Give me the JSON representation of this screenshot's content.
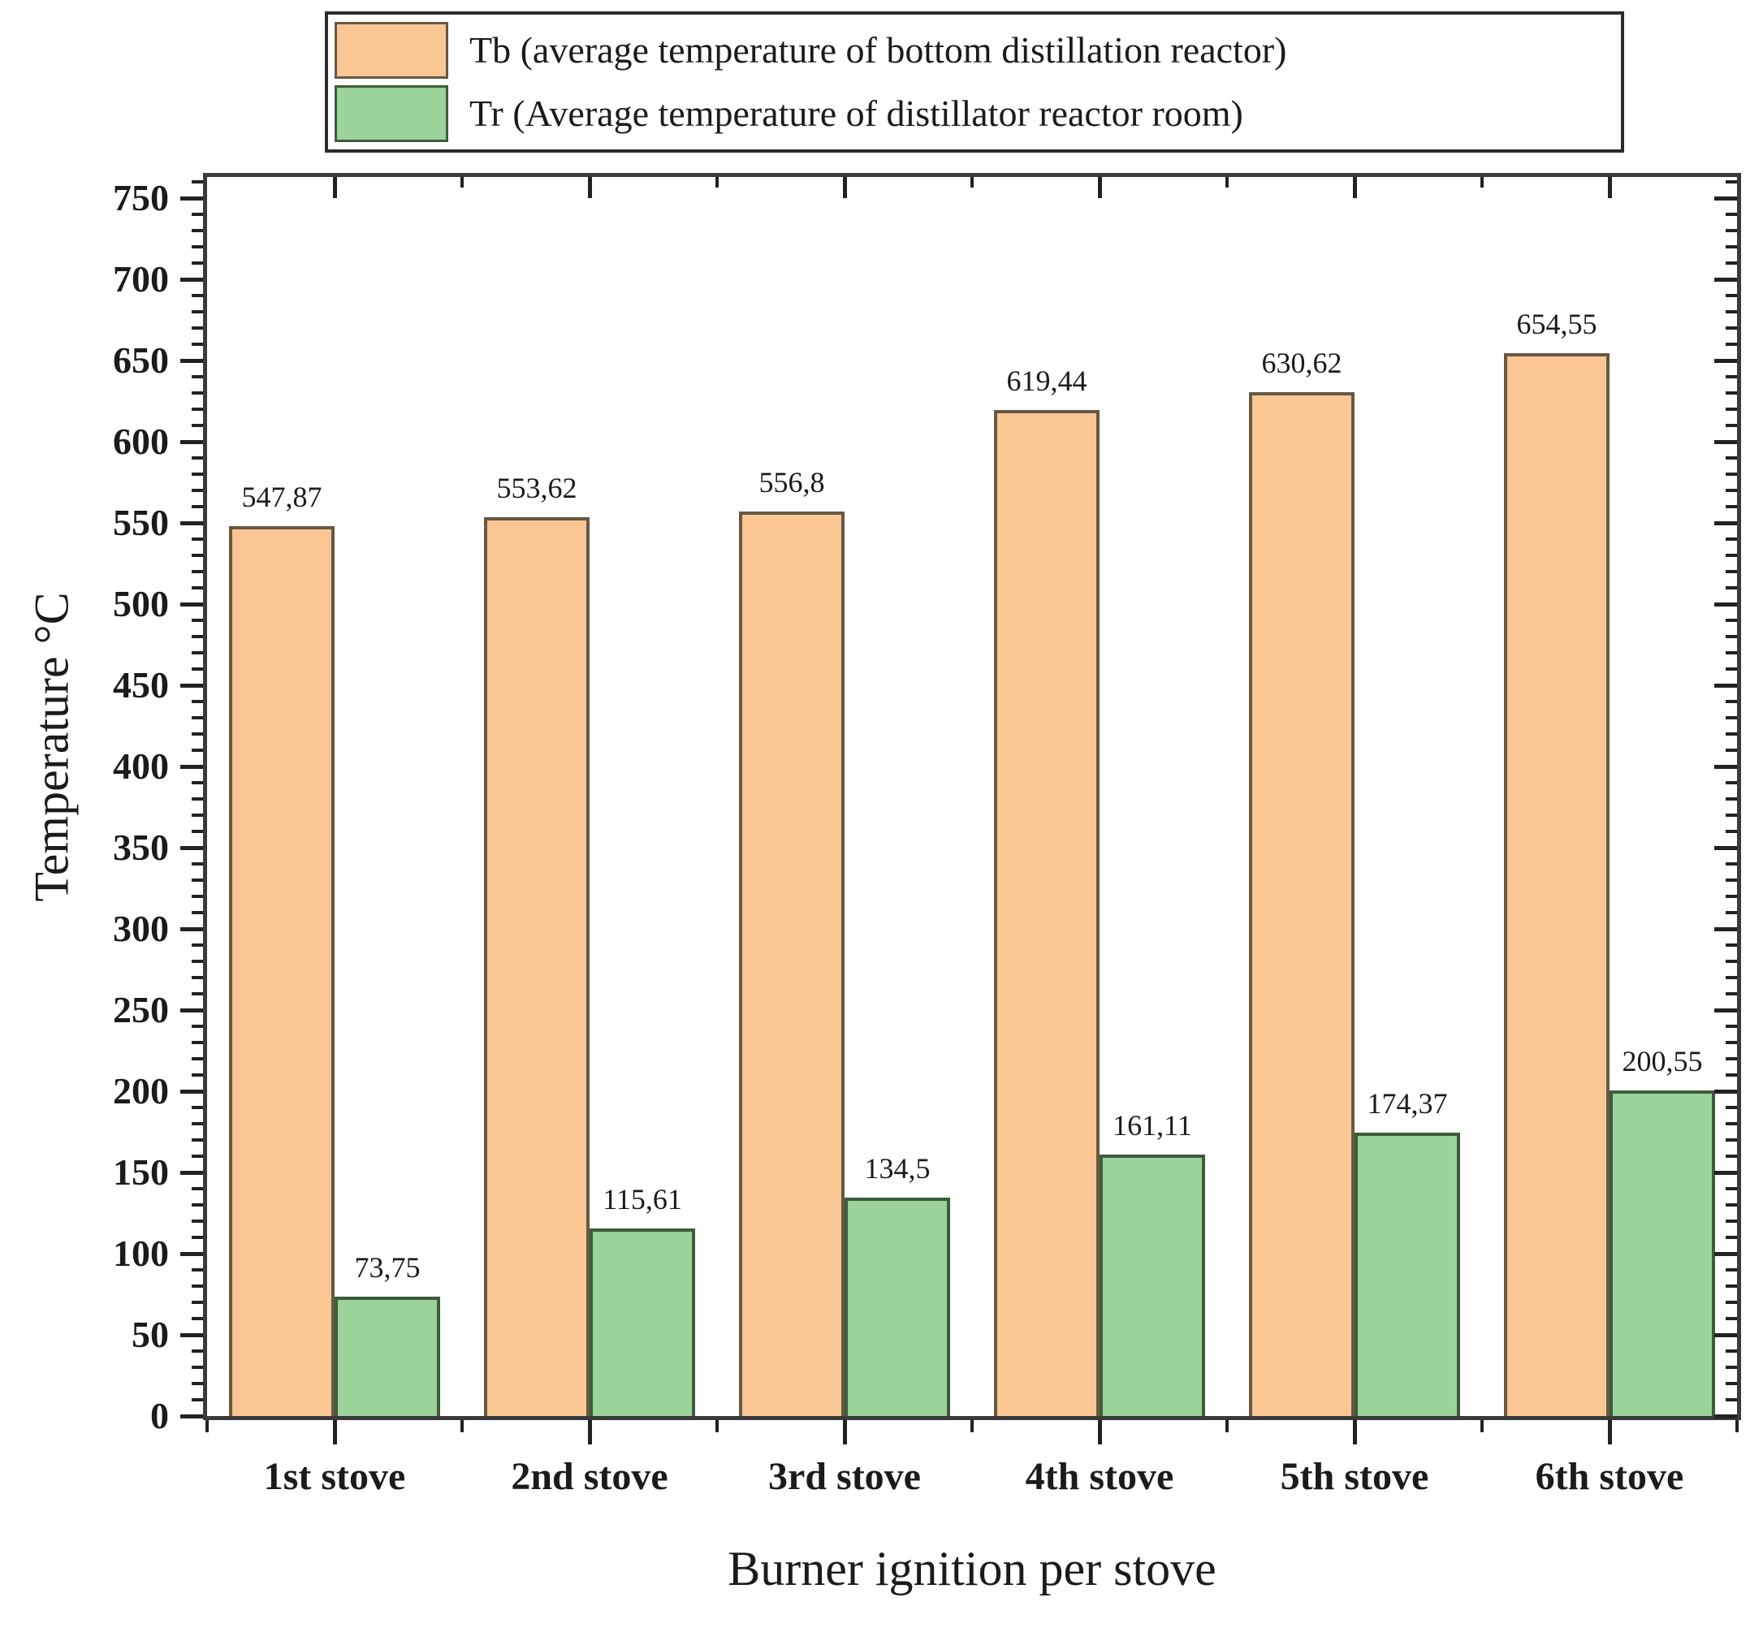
{
  "chart_data": {
    "type": "bar",
    "title": "",
    "xlabel": "Burner ignition per stove",
    "ylabel": "Temperature °C",
    "categories": [
      "1st stove",
      "2nd stove",
      "3rd stove",
      "4th stove",
      "5th stove",
      "6th stove"
    ],
    "series": [
      {
        "name": "Tb (average temperature of bottom distillation reactor)",
        "short_name": "Tb",
        "color": "#FAC693",
        "border_color": "#665843",
        "values": [
          547.87,
          553.62,
          556.8,
          619.44,
          630.62,
          654.55
        ],
        "value_labels": [
          "547,87",
          "553,62",
          "556,8",
          "619,44",
          "630,62",
          "654,55"
        ]
      },
      {
        "name": "Tr (Average temperature of distillator reactor room)",
        "short_name": "Tr",
        "color": "#9BD39B",
        "border_color": "#3E5C3B",
        "values": [
          73.75,
          115.61,
          134.5,
          161.11,
          174.37,
          200.55
        ],
        "value_labels": [
          "73,75",
          "115,61",
          "134,5",
          "161,11",
          "174,37",
          "200,55"
        ]
      }
    ],
    "ylim": [
      0,
      763
    ],
    "y_major_tick_step": 50,
    "y_minor_tick_step": 10,
    "y_major_tick_labels": [
      "0",
      "50",
      "100",
      "150",
      "200",
      "250",
      "300",
      "350",
      "400",
      "450",
      "500",
      "550",
      "600",
      "650",
      "700",
      "750"
    ],
    "grid": false,
    "legend_position": "top-center",
    "decimal_separator": ","
  },
  "legend": {
    "items": [
      {
        "label": "Tb (average temperature of bottom distillation reactor)"
      },
      {
        "label": "Tr (Average temperature of distillator reactor room)"
      }
    ]
  },
  "colors": {
    "background": "#ffffff",
    "frame": "#3a3a3a",
    "tick": "#222222",
    "text": "#1b1b1b"
  }
}
